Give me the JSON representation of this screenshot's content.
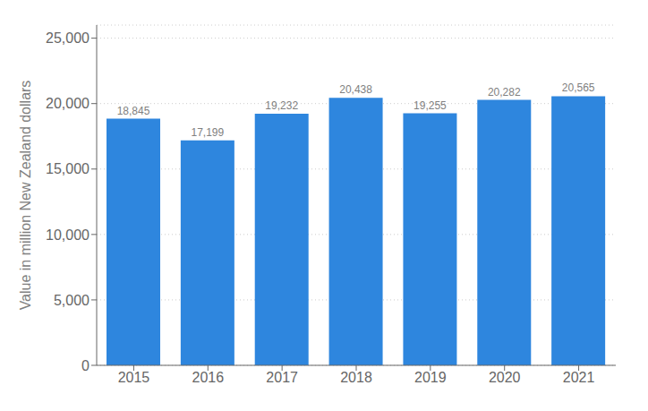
{
  "chart_data": {
    "type": "bar",
    "categories": [
      "2015",
      "2016",
      "2017",
      "2018",
      "2019",
      "2020",
      "2021"
    ],
    "values": [
      18845,
      17199,
      19232,
      20438,
      19255,
      20282,
      20565
    ],
    "value_labels": [
      "18,845",
      "17,199",
      "19,232",
      "20,438",
      "19,255",
      "20,282",
      "20,565"
    ],
    "color": "#2e86de",
    "ylabel": "Value in million New Zealand dollars",
    "ylim": [
      0,
      26000
    ],
    "yticks": [
      0,
      {
        "value": 5000,
        "label": "5,000"
      },
      {
        "value": 10000,
        "label": "10,000"
      },
      {
        "value": 15000,
        "label": "15,000"
      },
      {
        "value": 20000,
        "label": "20,000"
      },
      {
        "value": 25000,
        "label": "25,000"
      }
    ],
    "grid": true,
    "data_labels": true
  }
}
